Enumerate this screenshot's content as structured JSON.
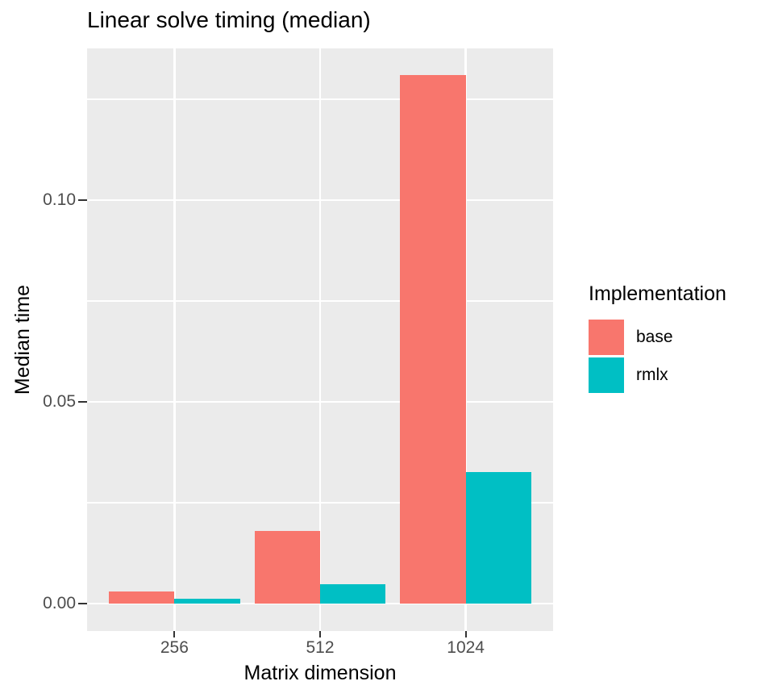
{
  "title": "Linear solve timing (median)",
  "axes": {
    "x_label": "Matrix dimension",
    "y_label": "Median time",
    "x_ticks": [
      "256",
      "512",
      "1024"
    ],
    "y_ticks": [
      "0.00",
      "0.05",
      "0.10"
    ]
  },
  "legend": {
    "title": "Implementation",
    "items": [
      {
        "label": "base",
        "color": "#F8766D"
      },
      {
        "label": "rmlx",
        "color": "#00BFC4"
      }
    ]
  },
  "colors": {
    "panel_background": "#EBEBEB",
    "gridline": "#FFFFFF",
    "tick_label": "#4D4D4D",
    "tick_mark": "#333333",
    "title_text": "#000000",
    "base_fill": "#F8766D",
    "rmlx_fill": "#00BFC4"
  },
  "chart_data": {
    "type": "bar",
    "bar_layout": "dodge",
    "categories": [
      "256",
      "512",
      "1024"
    ],
    "series": [
      {
        "name": "base",
        "color": "#F8766D",
        "values": [
          0.003,
          0.018,
          0.131
        ]
      },
      {
        "name": "rmlx",
        "color": "#00BFC4",
        "values": [
          0.0012,
          0.0048,
          0.0326
        ]
      }
    ],
    "title": "Linear solve timing (median)",
    "xlabel": "Matrix dimension",
    "ylabel": "Median time",
    "ylim": [
      -0.007,
      0.138
    ],
    "y_major_ticks": [
      0,
      0.05,
      0.1
    ],
    "y_minor_gridlines": [
      0.025,
      0.075,
      0.125
    ],
    "grid": "on",
    "legend_position": "right",
    "legend_title": "Implementation"
  }
}
